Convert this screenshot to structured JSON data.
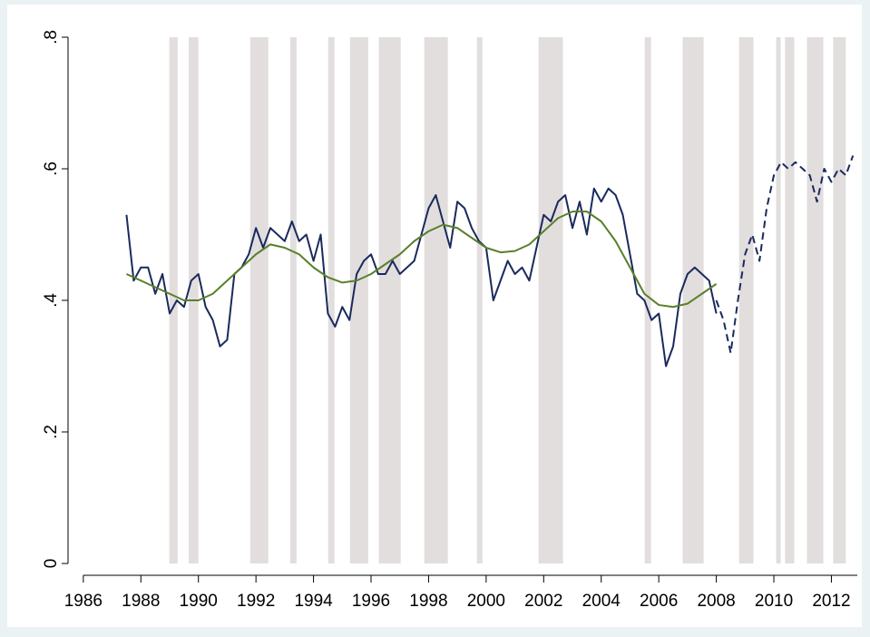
{
  "chart_data": {
    "type": "line",
    "xlim": [
      1985.5,
      2012.9
    ],
    "ylim": [
      -0.02,
      0.84
    ],
    "xticks": [
      1986,
      1988,
      1990,
      1992,
      1994,
      1996,
      1998,
      2000,
      2002,
      2004,
      2006,
      2008,
      2010,
      2012
    ],
    "yticks": [
      0,
      {
        "value": 0.2,
        "label": ".2"
      },
      {
        "value": 0.4,
        "label": ".4"
      },
      {
        "value": 0.6,
        "label": ".6"
      },
      {
        "value": 0.8,
        "label": ".8"
      }
    ],
    "shaded_periods": [
      [
        1988.99,
        1989.28
      ],
      [
        1989.66,
        1990.0
      ],
      [
        1991.8,
        1992.43
      ],
      [
        1993.19,
        1993.41
      ],
      [
        1994.51,
        1994.73
      ],
      [
        1995.27,
        1995.9
      ],
      [
        1996.27,
        1997.03
      ],
      [
        1997.85,
        1998.67
      ],
      [
        1999.68,
        1999.87
      ],
      [
        2001.82,
        2002.67
      ],
      [
        2005.51,
        2005.73
      ],
      [
        2006.83,
        2007.56
      ],
      [
        2008.79,
        2009.29
      ],
      [
        2010.08,
        2010.24
      ],
      [
        2010.39,
        2010.71
      ],
      [
        2011.15,
        2011.72
      ],
      [
        2012.06,
        2012.5
      ]
    ],
    "shade_color": "#e2dede",
    "series": [
      {
        "color": "#1a2a5e",
        "style": "solid",
        "x": [
          1987.5,
          1987.75,
          1988.0,
          1988.25,
          1988.5,
          1988.75,
          1989.0,
          1989.25,
          1989.5,
          1989.75,
          1990.0,
          1990.25,
          1990.5,
          1990.75,
          1991.0,
          1991.25,
          1991.5,
          1991.75,
          1992.0,
          1992.25,
          1992.5,
          1992.75,
          1993.0,
          1993.25,
          1993.5,
          1993.75,
          1994.0,
          1994.25,
          1994.5,
          1994.75,
          1995.0,
          1995.25,
          1995.5,
          1995.75,
          1996.0,
          1996.25,
          1996.5,
          1996.75,
          1997.0,
          1997.25,
          1997.5,
          1997.75,
          1998.0,
          1998.25,
          1998.5,
          1998.75,
          1999.0,
          1999.25,
          1999.5,
          1999.75,
          2000.0,
          2000.25,
          2000.5,
          2000.75,
          2001.0,
          2001.25,
          2001.5,
          2001.75,
          2002.0,
          2002.25,
          2002.5,
          2002.75,
          2003.0,
          2003.25,
          2003.5,
          2003.75,
          2004.0,
          2004.25,
          2004.5,
          2004.75,
          2005.0,
          2005.25,
          2005.5,
          2005.75,
          2006.0,
          2006.25,
          2006.5,
          2006.75,
          2007.0,
          2007.25,
          2007.5,
          2007.75,
          2008.0
        ],
        "values": [
          0.53,
          0.43,
          0.45,
          0.45,
          0.41,
          0.44,
          0.38,
          0.4,
          0.39,
          0.43,
          0.44,
          0.39,
          0.37,
          0.33,
          0.34,
          0.44,
          0.45,
          0.47,
          0.51,
          0.48,
          0.51,
          0.5,
          0.49,
          0.52,
          0.49,
          0.5,
          0.46,
          0.5,
          0.38,
          0.36,
          0.39,
          0.37,
          0.44,
          0.46,
          0.47,
          0.44,
          0.44,
          0.46,
          0.44,
          0.45,
          0.46,
          0.5,
          0.54,
          0.56,
          0.52,
          0.48,
          0.55,
          0.54,
          0.51,
          0.49,
          0.48,
          0.4,
          0.43,
          0.46,
          0.44,
          0.45,
          0.43,
          0.48,
          0.53,
          0.52,
          0.55,
          0.56,
          0.51,
          0.55,
          0.5,
          0.57,
          0.55,
          0.57,
          0.56,
          0.53,
          0.47,
          0.41,
          0.4,
          0.37,
          0.38,
          0.3,
          0.33,
          0.41,
          0.44,
          0.45,
          0.44,
          0.43,
          0.38
        ]
      },
      {
        "color": "#1a2a5e",
        "style": "dashed",
        "x": [
          2008.0,
          2008.25,
          2008.5,
          2008.75,
          2009.0,
          2009.25,
          2009.5,
          2009.75,
          2010.0,
          2010.25,
          2010.5,
          2010.75,
          2011.0,
          2011.25,
          2011.5,
          2011.75,
          2012.0,
          2012.25,
          2012.5,
          2012.75
        ],
        "values": [
          0.4,
          0.37,
          0.32,
          0.4,
          0.47,
          0.5,
          0.46,
          0.54,
          0.59,
          0.61,
          0.6,
          0.61,
          0.6,
          0.59,
          0.55,
          0.6,
          0.58,
          0.6,
          0.59,
          0.62
        ]
      },
      {
        "color": "#5a7f2a",
        "style": "solid",
        "x": [
          1987.5,
          1988.0,
          1988.5,
          1989.0,
          1989.5,
          1990.0,
          1990.5,
          1991.0,
          1991.5,
          1992.0,
          1992.5,
          1993.0,
          1993.5,
          1994.0,
          1994.5,
          1995.0,
          1995.5,
          1996.0,
          1996.5,
          1997.0,
          1997.5,
          1998.0,
          1998.5,
          1999.0,
          1999.5,
          2000.0,
          2000.5,
          2001.0,
          2001.5,
          2002.0,
          2002.5,
          2003.0,
          2003.5,
          2004.0,
          2004.5,
          2005.0,
          2005.5,
          2006.0,
          2006.5,
          2007.0,
          2007.5,
          2008.0
        ],
        "values": [
          0.44,
          0.43,
          0.42,
          0.41,
          0.4,
          0.4,
          0.41,
          0.43,
          0.45,
          0.47,
          0.485,
          0.48,
          0.47,
          0.45,
          0.435,
          0.427,
          0.43,
          0.44,
          0.455,
          0.47,
          0.49,
          0.505,
          0.515,
          0.51,
          0.495,
          0.48,
          0.473,
          0.475,
          0.485,
          0.505,
          0.525,
          0.535,
          0.535,
          0.52,
          0.49,
          0.45,
          0.41,
          0.393,
          0.39,
          0.395,
          0.41,
          0.425
        ]
      }
    ]
  }
}
